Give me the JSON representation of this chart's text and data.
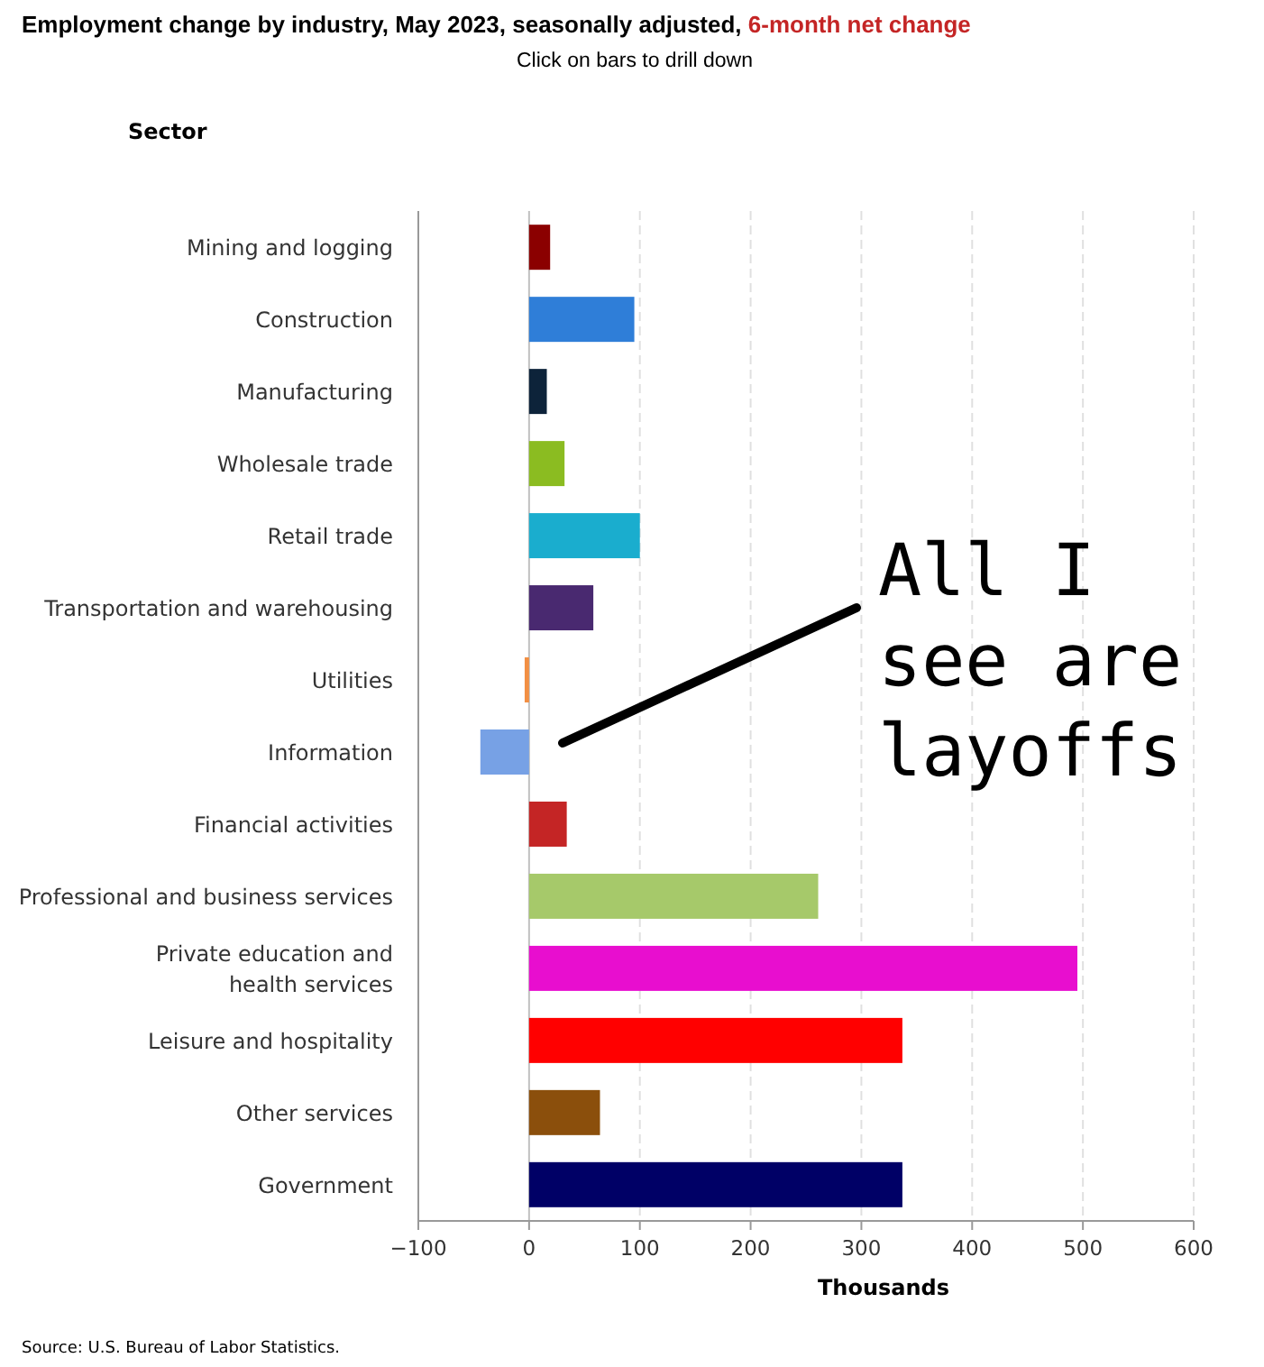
{
  "chart_data": {
    "type": "bar",
    "orientation": "horizontal",
    "title": "Employment change by industry, May 2023, seasonally adjusted, 6-month net change",
    "subtitle": "Click on bars to drill down",
    "ylabel": "Sector",
    "xlabel": "Thousands",
    "categories": [
      "Mining and logging",
      "Construction",
      "Manufacturing",
      "Wholesale trade",
      "Retail trade",
      "Transportation and warehousing",
      "Utilities",
      "Information",
      "Financial activities",
      "Professional and business services",
      "Private education and health services",
      "Leisure and hospitality",
      "Other services",
      "Government"
    ],
    "values": [
      19,
      95,
      16,
      32,
      100,
      58,
      -4,
      -44,
      34,
      261,
      495,
      337,
      64,
      337
    ],
    "colors": [
      "#8b0000",
      "#2f7ed8",
      "#0d233a",
      "#8bbc21",
      "#1aadce",
      "#492970",
      "#f28f43",
      "#77a1e5",
      "#c42525",
      "#a6c96a",
      "#e80ecf",
      "#ff0000",
      "#8b4f0c",
      "#000066"
    ],
    "xlim": [
      -100,
      600
    ],
    "xticks": [
      -100,
      0,
      100,
      200,
      300,
      400,
      500,
      600
    ],
    "grid": "x",
    "annotations": [
      "Source: U.S. Bureau of Labor Statistics.",
      "All I see are layoffs"
    ]
  }
}
